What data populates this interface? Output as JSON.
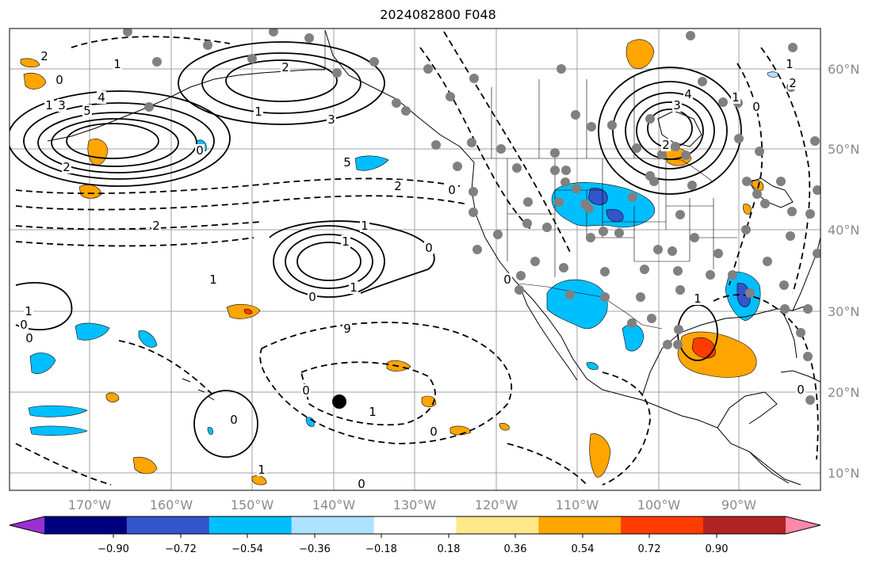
{
  "title": "2024082800 F048",
  "map": {
    "lon_ticks": [
      "170°W",
      "160°W",
      "150°W",
      "140°W",
      "130°W",
      "120°W",
      "110°W",
      "100°W",
      "90°W"
    ],
    "lat_ticks": [
      "60°N",
      "50°N",
      "40°N",
      "30°N",
      "20°N",
      "10°N"
    ]
  },
  "colorbar": {
    "labels": [
      "−0.90",
      "−0.72",
      "−0.54",
      "−0.36",
      "−0.18",
      "0.18",
      "0.36",
      "0.54",
      "0.72",
      "0.90"
    ],
    "colors": [
      "#9b30d0",
      "#000080",
      "#3355cc",
      "#00bfff",
      "#aee2ff",
      "#ffffff",
      "#ffe88a",
      "#ffa500",
      "#ff3c00",
      "#b22222",
      "#ff88aa"
    ]
  },
  "contour_labels": [
    "2",
    "1",
    "0",
    "5",
    "4",
    "3",
    "2",
    "1",
    "0",
    "1",
    "2",
    "3",
    "5",
    "3",
    "4",
    "2",
    "1",
    "0",
    "1",
    "2",
    "2",
    "0",
    "2",
    "1",
    "1",
    "0",
    "1",
    "0",
    "9",
    "0",
    "1",
    "0",
    "1",
    "0",
    "1",
    "0",
    "0",
    "1",
    "0",
    "1",
    "0",
    "0"
  ],
  "palette": {
    "blue": "#00bfff",
    "lightblue": "#aee2ff",
    "orange": "#ffa500",
    "red": "#ff3c00",
    "darkblue": "#3355cc",
    "purple": "#9b30d0"
  }
}
